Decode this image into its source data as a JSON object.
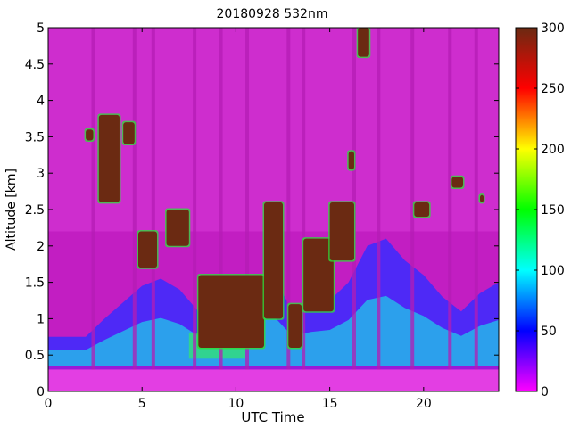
{
  "chart_data": {
    "type": "heatmap",
    "title": "20180928 532nm",
    "xlabel": "UTC Time",
    "ylabel": "Altitude [km]",
    "xlim": [
      0,
      24
    ],
    "ylim": [
      0,
      5
    ],
    "x_ticks": [
      0,
      5,
      10,
      15,
      20
    ],
    "y_ticks": [
      0,
      0.5,
      1,
      1.5,
      2,
      2.5,
      3,
      3.5,
      4,
      4.5,
      5
    ],
    "colorbar": {
      "ticks": [
        0,
        50,
        100,
        150,
        200,
        250,
        300
      ],
      "range": [
        0,
        300
      ],
      "colormap": [
        "#ff00ff",
        "#0000ff",
        "#00ffff",
        "#00ff00",
        "#ffff00",
        "#ff0000",
        "#6b2a12"
      ]
    },
    "grid": false,
    "features": {
      "surface_layer": {
        "altitude_km": [
          0.2,
          0.3
        ],
        "value": 20
      },
      "boundary_layer_top_km": [
        [
          0,
          0.75
        ],
        [
          2,
          0.75
        ],
        [
          3,
          1.0
        ],
        [
          5,
          1.45
        ],
        [
          6,
          1.55
        ],
        [
          7,
          1.4
        ],
        [
          8,
          1.1
        ],
        [
          9,
          1.0
        ],
        [
          10,
          1.15
        ],
        [
          11,
          1.5
        ],
        [
          12,
          1.6
        ],
        [
          13,
          1.1
        ],
        [
          14,
          1.2
        ],
        [
          15,
          1.25
        ],
        [
          16,
          1.5
        ],
        [
          17,
          2.0
        ],
        [
          18,
          2.1
        ],
        [
          19,
          1.8
        ],
        [
          20,
          1.6
        ],
        [
          21,
          1.3
        ],
        [
          22,
          1.1
        ],
        [
          23,
          1.35
        ],
        [
          24,
          1.5
        ]
      ],
      "high_backscatter_regions": [
        {
          "x": [
            2.0,
            2.4
          ],
          "y": [
            3.45,
            3.6
          ]
        },
        {
          "x": [
            2.7,
            3.8
          ],
          "y": [
            2.6,
            3.8
          ]
        },
        {
          "x": [
            4.0,
            4.6
          ],
          "y": [
            3.4,
            3.7
          ]
        },
        {
          "x": [
            4.8,
            5.8
          ],
          "y": [
            1.7,
            2.2
          ]
        },
        {
          "x": [
            6.3,
            7.5
          ],
          "y": [
            2.0,
            2.5
          ]
        },
        {
          "x": [
            8.0,
            11.5
          ],
          "y": [
            0.6,
            1.6
          ]
        },
        {
          "x": [
            11.5,
            12.5
          ],
          "y": [
            1.0,
            2.6
          ]
        },
        {
          "x": [
            12.8,
            13.5
          ],
          "y": [
            0.6,
            1.2
          ]
        },
        {
          "x": [
            13.6,
            15.2
          ],
          "y": [
            1.1,
            2.1
          ]
        },
        {
          "x": [
            15.0,
            16.3
          ],
          "y": [
            1.8,
            2.6
          ]
        },
        {
          "x": [
            16.0,
            16.3
          ],
          "y": [
            3.05,
            3.3
          ]
        },
        {
          "x": [
            16.5,
            17.1
          ],
          "y": [
            4.6,
            5.0
          ]
        },
        {
          "x": [
            19.5,
            20.3
          ],
          "y": [
            2.4,
            2.6
          ]
        },
        {
          "x": [
            21.5,
            22.1
          ],
          "y": [
            2.8,
            2.95
          ]
        },
        {
          "x": [
            23.0,
            23.2
          ],
          "y": [
            2.6,
            2.7
          ]
        }
      ],
      "clear_columns_utc": [
        2.4,
        4.6,
        5.6,
        7.8,
        9.2,
        10.6,
        12.8,
        13.6,
        16.3,
        17.6,
        19.4,
        21.4,
        22.8
      ],
      "upper_air_value_range": [
        0,
        20
      ]
    }
  }
}
